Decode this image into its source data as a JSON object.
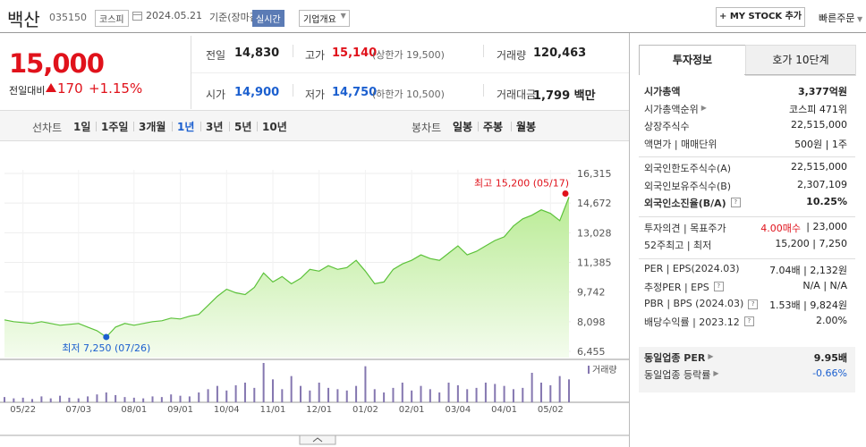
{
  "header": {
    "name": "백산",
    "code": "035150",
    "market": "코스피",
    "date": "2024.05.21",
    "basis": "기준(장마감)",
    "realtime": "실시간",
    "overview": "기업개요",
    "mystock": "MY STOCK 추가",
    "quick_order": "빠른주문"
  },
  "quote": {
    "price": "15,000",
    "change_label": "전일대비",
    "change": "170",
    "change_pct": "+1.15%",
    "stats": [
      {
        "label": "전일",
        "value": "14,830",
        "color": "#222"
      },
      {
        "label": "고가",
        "value": "15,140",
        "note": "(상한가 19,500)",
        "color": "#e0121b"
      },
      {
        "label": "거래량",
        "value": "120,463",
        "color": "#222"
      },
      {
        "label": "시가",
        "value": "14,900",
        "color": "#1b5fcf"
      },
      {
        "label": "저가",
        "value": "14,750",
        "note": "(하한가 10,500)",
        "color": "#1b5fcf"
      },
      {
        "label": "거래대금",
        "value": "1,799 백만",
        "color": "#222"
      }
    ]
  },
  "periods": {
    "line_label": "선차트",
    "line": [
      "1일",
      "1주일",
      "3개월",
      "1년",
      "3년",
      "5년",
      "10년"
    ],
    "selected": "1년",
    "candle_label": "봉차트",
    "candle": [
      "일봉",
      "주봉",
      "월봉"
    ]
  },
  "chart_data": {
    "type": "line",
    "color": "#5cc23a",
    "grid": true,
    "categories": [
      null,
      null,
      "05/22",
      null,
      null,
      null,
      null,
      null,
      "07/03",
      null,
      null,
      null,
      null,
      null,
      "08/01",
      null,
      null,
      null,
      null,
      "09/01",
      null,
      null,
      null,
      null,
      "10/04",
      null,
      null,
      null,
      null,
      "11/01",
      null,
      null,
      null,
      null,
      "12/01",
      null,
      null,
      null,
      null,
      "01/02",
      null,
      null,
      null,
      null,
      "02/01",
      null,
      null,
      null,
      null,
      "03/04",
      null,
      null,
      null,
      null,
      "04/01",
      null,
      null,
      null,
      null,
      "05/02",
      null,
      null
    ],
    "values": [
      8200,
      8100,
      8050,
      8000,
      8100,
      8000,
      7900,
      7950,
      8000,
      7800,
      7600,
      7250,
      7800,
      8000,
      7900,
      8000,
      8100,
      8150,
      8300,
      8250,
      8400,
      8500,
      9000,
      9500,
      9900,
      9700,
      9600,
      10000,
      10800,
      10300,
      10600,
      10200,
      10500,
      11000,
      10900,
      11200,
      11000,
      11100,
      11500,
      10900,
      10200,
      10300,
      11000,
      11300,
      11500,
      11800,
      11600,
      11500,
      11900,
      12300,
      11800,
      12000,
      12300,
      12600,
      12800,
      13400,
      13800,
      14000,
      14300,
      14100,
      13700,
      15000
    ],
    "volume": {
      "name": "거래량",
      "color": "#8577b0",
      "values": [
        80000,
        60000,
        70000,
        50000,
        90000,
        60000,
        100000,
        70000,
        60000,
        90000,
        120000,
        150000,
        110000,
        80000,
        70000,
        60000,
        90000,
        80000,
        120000,
        100000,
        90000,
        150000,
        200000,
        250000,
        180000,
        260000,
        300000,
        220000,
        600000,
        350000,
        200000,
        400000,
        250000,
        180000,
        300000,
        220000,
        200000,
        180000,
        250000,
        550000,
        200000,
        150000,
        220000,
        300000,
        180000,
        250000,
        200000,
        150000,
        300000,
        260000,
        200000,
        220000,
        300000,
        280000,
        250000,
        200000,
        220000,
        450000,
        300000,
        260000,
        400000,
        350000
      ]
    },
    "ylim": [
      6455,
      16315
    ],
    "yticks": [
      {
        "value": 6455,
        "label": "6,455"
      },
      {
        "value": 8098,
        "label": "8,098"
      },
      {
        "value": 9742,
        "label": "9,742"
      },
      {
        "value": 11385,
        "label": "11,385"
      },
      {
        "value": 13028,
        "label": "13,028"
      },
      {
        "value": 14672,
        "label": "14,672"
      },
      {
        "value": 16315,
        "label": "16,315"
      }
    ],
    "annotations": [
      {
        "text": "최고 15,200 (05/17)",
        "value": 15200,
        "color": "#e0121b"
      },
      {
        "text": "최저 7,250 (07/26)",
        "value": 7250,
        "color": "#1b5fcf"
      }
    ]
  },
  "info": {
    "tabs": [
      "투자정보",
      "호가 10단계"
    ],
    "sections": [
      {
        "rows": [
          {
            "label": "시가총액",
            "value": "3,377억원",
            "bold": true
          },
          {
            "label": "시가총액순위",
            "value": "코스피 471위",
            "more": true
          },
          {
            "label": "상장주식수",
            "value": "22,515,000"
          },
          {
            "label": "액면가 | 매매단위",
            "value": "500원 | 1주"
          }
        ]
      },
      {
        "rows": [
          {
            "label": "외국인한도주식수(A)",
            "value": "22,515,000"
          },
          {
            "label": "외국인보유주식수(B)",
            "value": "2,307,109"
          },
          {
            "label": "외국인소진율(B/A)",
            "value": "10.25%",
            "bold": true,
            "help": true
          }
        ]
      },
      {
        "rows": [
          {
            "label": "투자의견 | 목표주가",
            "value": "4.00매수",
            "extra": "| 23,000",
            "color": "#e0121b"
          },
          {
            "label": "52주최고 | 최저",
            "value": "15,200 | 7,250"
          }
        ]
      },
      {
        "rows": [
          {
            "label": "PER | EPS(2024.03)",
            "value": "7.04배 | 2,132원"
          },
          {
            "label": "추정PER | EPS",
            "value": "N/A | N/A",
            "help": true
          },
          {
            "label": "PBR | BPS (2024.03)",
            "value": "1.53배 | 9,824원",
            "help": true
          },
          {
            "label": "배당수익률 | 2023.12",
            "value": "2.00%",
            "help": true
          }
        ]
      },
      {
        "shaded": true,
        "rows": [
          {
            "label": "동일업종 PER",
            "value": "9.95배",
            "bold": true,
            "more": true
          },
          {
            "label": "동일업종 등락률",
            "value": "-0.66%",
            "color": "#1b5fcf",
            "more": true
          }
        ]
      }
    ]
  }
}
